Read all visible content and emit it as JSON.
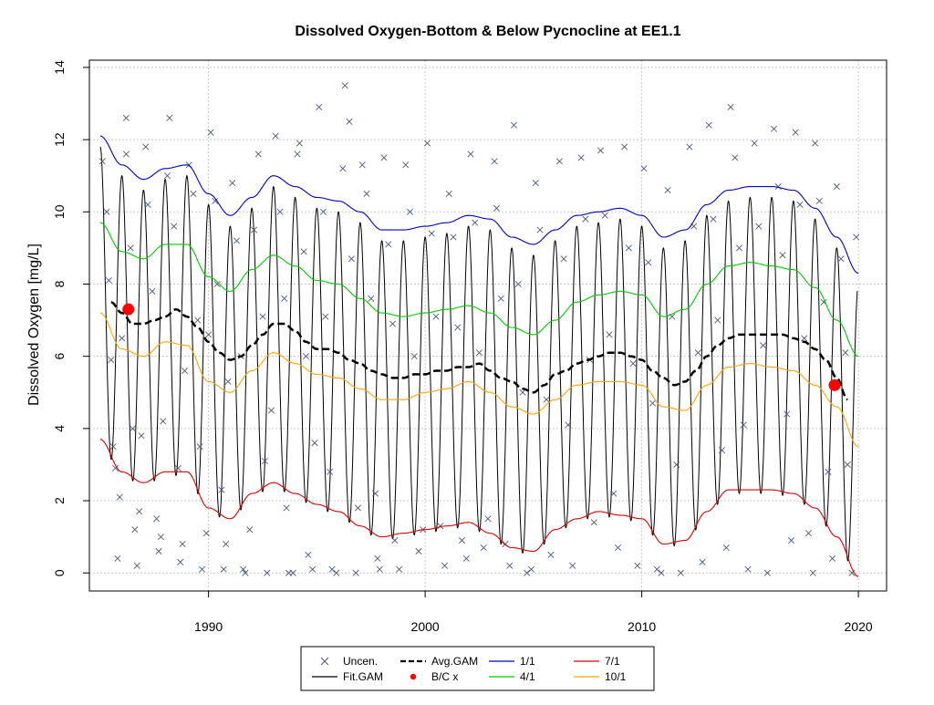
{
  "chart_data": {
    "type": "line",
    "title": "Dissolved Oxygen-Bottom & Below Pycnocline at EE1.1",
    "ylabel": "Dissolved Oxygen [mg/L]",
    "xlabel": "",
    "xlim": [
      1984.5,
      2021.3
    ],
    "ylim": [
      -0.5,
      14.2
    ],
    "x_ticks": [
      1990,
      2000,
      2010,
      2020
    ],
    "y_ticks": [
      0,
      2,
      4,
      6,
      8,
      10,
      12,
      14
    ],
    "grid": true,
    "legend": {
      "placement": "bottom-center",
      "entries": [
        {
          "label": "Uncen.",
          "symbol": "x",
          "color": "#4a5a78"
        },
        {
          "label": "Fit.GAM",
          "symbol": "line",
          "color": "#000000"
        },
        {
          "label": "Avg.GAM",
          "symbol": "dashed-line",
          "color": "#000000"
        },
        {
          "label": "B/C x",
          "symbol": "dot",
          "color": "#ff0000"
        },
        {
          "label": "1/1",
          "symbol": "line",
          "color": "#0000cc"
        },
        {
          "label": "4/1",
          "symbol": "line",
          "color": "#00cc00"
        },
        {
          "label": "7/1",
          "symbol": "line",
          "color": "#dd0000"
        },
        {
          "label": "10/1",
          "symbol": "line",
          "color": "#ffa500"
        }
      ]
    },
    "fit_gam_description": "seasonal oscillation between the 7/1 (minimum) and 1/1 (maximum) curves, one cycle per year",
    "series": [
      {
        "name": "1/1",
        "color": "#0000cc",
        "style": "solid",
        "x": [
          1985.0,
          1986.0,
          1987.0,
          1988.0,
          1989.0,
          1990.0,
          1991.0,
          1992.0,
          1993.0,
          1994.0,
          1995.0,
          1996.0,
          1997.0,
          1998.0,
          1999.0,
          2000.0,
          2001.0,
          2002.0,
          2003.0,
          2004.0,
          2005.0,
          2006.0,
          2007.0,
          2008.0,
          2009.0,
          2010.0,
          2011.0,
          2012.0,
          2013.0,
          2014.0,
          2015.0,
          2016.0,
          2017.0,
          2018.0,
          2019.0,
          2020.0
        ],
        "y": [
          12.1,
          11.3,
          10.9,
          11.2,
          11.3,
          10.5,
          9.9,
          10.4,
          11.0,
          10.7,
          10.4,
          10.3,
          10.0,
          9.5,
          9.5,
          9.6,
          9.7,
          9.9,
          9.8,
          9.3,
          9.1,
          9.5,
          9.9,
          10.0,
          10.1,
          9.9,
          9.3,
          9.5,
          10.2,
          10.6,
          10.7,
          10.7,
          10.6,
          10.1,
          9.3,
          8.3
        ]
      },
      {
        "name": "4/1",
        "color": "#00cc00",
        "style": "solid",
        "x": [
          1985.0,
          1986.0,
          1987.0,
          1988.0,
          1989.0,
          1990.0,
          1991.0,
          1992.0,
          1993.0,
          1994.0,
          1995.0,
          1996.0,
          1997.0,
          1998.0,
          1999.0,
          2000.0,
          2001.0,
          2002.0,
          2003.0,
          2004.0,
          2005.0,
          2006.0,
          2007.0,
          2008.0,
          2009.0,
          2010.0,
          2011.0,
          2012.0,
          2013.0,
          2014.0,
          2015.0,
          2016.0,
          2017.0,
          2018.0,
          2019.0,
          2020.0
        ],
        "y": [
          9.7,
          8.9,
          8.7,
          9.1,
          9.1,
          8.2,
          7.8,
          8.4,
          8.8,
          8.5,
          8.1,
          8.0,
          7.6,
          7.2,
          7.1,
          7.2,
          7.3,
          7.4,
          7.2,
          6.8,
          6.6,
          7.0,
          7.5,
          7.7,
          7.8,
          7.7,
          7.1,
          7.3,
          8.0,
          8.5,
          8.6,
          8.5,
          8.4,
          7.9,
          7.0,
          6.0
        ]
      },
      {
        "name": "10/1",
        "color": "#ffa500",
        "style": "solid",
        "x": [
          1985.0,
          1986.0,
          1987.0,
          1988.0,
          1989.0,
          1990.0,
          1991.0,
          1992.0,
          1993.0,
          1994.0,
          1995.0,
          1996.0,
          1997.0,
          1998.0,
          1999.0,
          2000.0,
          2001.0,
          2002.0,
          2003.0,
          2004.0,
          2005.0,
          2006.0,
          2007.0,
          2008.0,
          2009.0,
          2010.0,
          2011.0,
          2012.0,
          2013.0,
          2014.0,
          2015.0,
          2016.0,
          2017.0,
          2018.0,
          2019.0,
          2020.0
        ],
        "y": [
          7.2,
          6.2,
          6.0,
          6.4,
          6.3,
          5.3,
          5.0,
          5.6,
          6.1,
          5.8,
          5.5,
          5.4,
          5.1,
          4.8,
          4.8,
          5.0,
          5.1,
          5.3,
          5.0,
          4.6,
          4.4,
          4.8,
          5.2,
          5.3,
          5.3,
          5.2,
          4.6,
          4.5,
          5.2,
          5.7,
          5.8,
          5.7,
          5.6,
          5.2,
          4.6,
          3.5
        ]
      },
      {
        "name": "7/1",
        "color": "#dd0000",
        "style": "solid",
        "x": [
          1985.0,
          1986.0,
          1987.0,
          1988.0,
          1989.0,
          1990.0,
          1991.0,
          1992.0,
          1993.0,
          1994.0,
          1995.0,
          1996.0,
          1997.0,
          1998.0,
          1999.0,
          2000.0,
          2001.0,
          2002.0,
          2003.0,
          2004.0,
          2005.0,
          2006.0,
          2007.0,
          2008.0,
          2009.0,
          2010.0,
          2011.0,
          2012.0,
          2013.0,
          2014.0,
          2015.0,
          2016.0,
          2017.0,
          2018.0,
          2019.0,
          2020.0
        ],
        "y": [
          3.7,
          2.8,
          2.5,
          2.8,
          2.8,
          1.8,
          1.5,
          2.2,
          2.5,
          2.2,
          1.9,
          1.7,
          1.3,
          1.0,
          1.1,
          1.2,
          1.3,
          1.4,
          1.1,
          0.7,
          0.6,
          1.2,
          1.5,
          1.7,
          1.6,
          1.5,
          0.8,
          0.9,
          1.7,
          2.3,
          2.3,
          2.3,
          2.2,
          1.8,
          1.0,
          -0.1
        ]
      },
      {
        "name": "Avg.GAM",
        "color": "#000000",
        "style": "dashed",
        "x": [
          1985.5,
          1986.0,
          1986.5,
          1987.0,
          1987.5,
          1988.0,
          1988.5,
          1989.0,
          1989.5,
          1990.0,
          1990.5,
          1991.0,
          1991.5,
          1992.0,
          1992.5,
          1993.0,
          1993.5,
          1994.0,
          1994.5,
          1995.0,
          1995.5,
          1996.0,
          1996.5,
          1997.0,
          1997.5,
          1998.0,
          1998.5,
          1999.0,
          1999.5,
          2000.0,
          2000.5,
          2001.0,
          2001.5,
          2002.0,
          2002.5,
          2003.0,
          2003.5,
          2004.0,
          2004.5,
          2005.0,
          2005.5,
          2006.0,
          2006.5,
          2007.0,
          2007.5,
          2008.0,
          2008.5,
          2009.0,
          2009.5,
          2010.0,
          2010.5,
          2011.0,
          2011.5,
          2012.0,
          2012.5,
          2013.0,
          2013.5,
          2014.0,
          2014.5,
          2015.0,
          2015.5,
          2016.0,
          2016.5,
          2017.0,
          2017.5,
          2018.0,
          2018.5,
          2019.0,
          2019.5
        ],
        "y": [
          7.5,
          7.2,
          6.9,
          6.9,
          7.0,
          7.1,
          7.3,
          7.1,
          6.8,
          6.4,
          6.1,
          5.9,
          6.0,
          6.3,
          6.6,
          6.9,
          6.9,
          6.7,
          6.4,
          6.2,
          6.2,
          6.1,
          5.9,
          5.8,
          5.6,
          5.5,
          5.4,
          5.4,
          5.5,
          5.5,
          5.6,
          5.6,
          5.7,
          5.7,
          5.8,
          5.6,
          5.4,
          5.3,
          5.1,
          5.0,
          5.2,
          5.5,
          5.6,
          5.8,
          5.9,
          6.0,
          6.1,
          6.1,
          6.0,
          5.9,
          5.6,
          5.4,
          5.2,
          5.3,
          5.6,
          6.0,
          6.3,
          6.5,
          6.6,
          6.6,
          6.6,
          6.6,
          6.6,
          6.5,
          6.4,
          6.2,
          5.9,
          5.4,
          4.8
        ]
      }
    ],
    "bc_points": [
      {
        "x": 1986.3,
        "y": 7.3
      },
      {
        "x": 2018.9,
        "y": 5.2
      }
    ],
    "uncen_points": [
      [
        1985.1,
        11.4
      ],
      [
        1985.3,
        10.0
      ],
      [
        1985.4,
        8.1
      ],
      [
        1985.5,
        5.9
      ],
      [
        1985.6,
        3.5
      ],
      [
        1985.7,
        2.9
      ],
      [
        1985.8,
        0.4
      ],
      [
        1985.9,
        2.1
      ],
      [
        1986.0,
        6.5
      ],
      [
        1986.2,
        11.6
      ],
      [
        1986.2,
        12.6
      ],
      [
        1986.4,
        9.0
      ],
      [
        1986.5,
        4.0
      ],
      [
        1986.6,
        1.2
      ],
      [
        1986.7,
        0.2
      ],
      [
        1986.8,
        1.7
      ],
      [
        1986.9,
        3.8
      ],
      [
        1987.1,
        11.8
      ],
      [
        1987.2,
        10.2
      ],
      [
        1987.4,
        7.8
      ],
      [
        1987.6,
        1.5
      ],
      [
        1987.7,
        0.6
      ],
      [
        1987.8,
        1.0
      ],
      [
        1987.9,
        4.2
      ],
      [
        1988.1,
        11.0
      ],
      [
        1988.2,
        12.6
      ],
      [
        1988.4,
        9.6
      ],
      [
        1988.6,
        2.9
      ],
      [
        1988.7,
        0.3
      ],
      [
        1988.8,
        0.8
      ],
      [
        1988.9,
        5.6
      ],
      [
        1989.1,
        11.3
      ],
      [
        1989.3,
        10.5
      ],
      [
        1989.5,
        7.0
      ],
      [
        1989.6,
        3.5
      ],
      [
        1989.7,
        0.1
      ],
      [
        1989.9,
        1.1
      ],
      [
        1990.0,
        6.6
      ],
      [
        1990.1,
        12.2
      ],
      [
        1990.3,
        10.3
      ],
      [
        1990.4,
        8.0
      ],
      [
        1990.6,
        2.3
      ],
      [
        1990.7,
        0.1
      ],
      [
        1990.8,
        0.8
      ],
      [
        1990.9,
        5.3
      ],
      [
        1991.1,
        10.8
      ],
      [
        1991.3,
        9.2
      ],
      [
        1991.5,
        6.0
      ],
      [
        1991.6,
        0.1
      ],
      [
        1991.7,
        0.0
      ],
      [
        1991.9,
        1.2
      ],
      [
        1992.1,
        9.5
      ],
      [
        1992.3,
        11.6
      ],
      [
        1992.5,
        7.1
      ],
      [
        1992.6,
        3.1
      ],
      [
        1992.7,
        0.0
      ],
      [
        1992.9,
        4.5
      ],
      [
        1993.1,
        12.1
      ],
      [
        1993.3,
        10.0
      ],
      [
        1993.5,
        7.6
      ],
      [
        1993.6,
        1.8
      ],
      [
        1993.7,
        0.0
      ],
      [
        1993.9,
        0.0
      ],
      [
        1994.1,
        11.6
      ],
      [
        1994.2,
        11.9
      ],
      [
        1994.4,
        8.9
      ],
      [
        1994.5,
        6.0
      ],
      [
        1994.6,
        0.5
      ],
      [
        1994.8,
        0.1
      ],
      [
        1994.9,
        3.6
      ],
      [
        1995.1,
        12.9
      ],
      [
        1995.3,
        10.0
      ],
      [
        1995.4,
        7.1
      ],
      [
        1995.6,
        2.8
      ],
      [
        1995.7,
        0.1
      ],
      [
        1995.9,
        0.0
      ],
      [
        1996.2,
        11.2
      ],
      [
        1996.3,
        13.5
      ],
      [
        1996.5,
        12.5
      ],
      [
        1996.6,
        8.7
      ],
      [
        1996.8,
        0.0
      ],
      [
        1996.9,
        1.8
      ],
      [
        1997.1,
        11.3
      ],
      [
        1997.3,
        10.5
      ],
      [
        1997.5,
        7.6
      ],
      [
        1997.7,
        2.2
      ],
      [
        1997.8,
        0.4
      ],
      [
        1997.9,
        0.1
      ],
      [
        1998.1,
        11.5
      ],
      [
        1998.3,
        9.1
      ],
      [
        1998.5,
        6.9
      ],
      [
        1998.6,
        0.9
      ],
      [
        1998.8,
        0.1
      ],
      [
        1999.1,
        11.3
      ],
      [
        1999.3,
        10.0
      ],
      [
        1999.5,
        6.0
      ],
      [
        1999.7,
        0.6
      ],
      [
        1999.9,
        1.2
      ],
      [
        2000.1,
        11.9
      ],
      [
        2000.3,
        9.4
      ],
      [
        2000.5,
        7.1
      ],
      [
        2000.7,
        1.3
      ],
      [
        2000.9,
        0.2
      ],
      [
        2001.1,
        10.5
      ],
      [
        2001.3,
        9.3
      ],
      [
        2001.5,
        6.8
      ],
      [
        2001.7,
        0.9
      ],
      [
        2001.9,
        0.4
      ],
      [
        2002.1,
        11.6
      ],
      [
        2002.3,
        9.7
      ],
      [
        2002.5,
        6.1
      ],
      [
        2002.7,
        0.7
      ],
      [
        2002.9,
        1.5
      ],
      [
        2003.2,
        11.4
      ],
      [
        2003.3,
        10.1
      ],
      [
        2003.5,
        7.6
      ],
      [
        2003.7,
        0.8
      ],
      [
        2003.9,
        0.2
      ],
      [
        2004.1,
        12.4
      ],
      [
        2004.3,
        8.0
      ],
      [
        2004.5,
        5.0
      ],
      [
        2004.7,
        0.0
      ],
      [
        2004.9,
        0.1
      ],
      [
        2005.1,
        10.8
      ],
      [
        2005.3,
        9.5
      ],
      [
        2005.6,
        4.8
      ],
      [
        2005.8,
        0.5
      ],
      [
        2006.2,
        11.4
      ],
      [
        2006.4,
        8.7
      ],
      [
        2006.6,
        4.1
      ],
      [
        2006.8,
        0.2
      ],
      [
        2007.2,
        11.5
      ],
      [
        2007.4,
        9.8
      ],
      [
        2007.6,
        5.9
      ],
      [
        2007.8,
        1.4
      ],
      [
        2008.1,
        11.7
      ],
      [
        2008.3,
        9.9
      ],
      [
        2008.5,
        6.6
      ],
      [
        2008.7,
        2.2
      ],
      [
        2008.9,
        0.7
      ],
      [
        2009.2,
        11.8
      ],
      [
        2009.4,
        9.0
      ],
      [
        2009.6,
        5.8
      ],
      [
        2009.8,
        0.2
      ],
      [
        2010.1,
        11.2
      ],
      [
        2010.3,
        8.6
      ],
      [
        2010.5,
        4.7
      ],
      [
        2010.7,
        0.1
      ],
      [
        2010.9,
        0.0
      ],
      [
        2011.2,
        10.6
      ],
      [
        2011.4,
        7.1
      ],
      [
        2011.6,
        3.0
      ],
      [
        2011.8,
        0.0
      ],
      [
        2012.2,
        11.8
      ],
      [
        2012.4,
        9.6
      ],
      [
        2012.6,
        6.1
      ],
      [
        2012.8,
        0.3
      ],
      [
        2013.1,
        12.4
      ],
      [
        2013.3,
        9.8
      ],
      [
        2013.5,
        7.0
      ],
      [
        2013.7,
        3.4
      ],
      [
        2013.9,
        0.7
      ],
      [
        2014.1,
        12.9
      ],
      [
        2014.3,
        11.5
      ],
      [
        2014.5,
        9.0
      ],
      [
        2014.7,
        4.1
      ],
      [
        2014.9,
        0.1
      ],
      [
        2015.2,
        11.9
      ],
      [
        2015.4,
        9.6
      ],
      [
        2015.6,
        6.3
      ],
      [
        2015.8,
        0.0
      ],
      [
        2016.1,
        12.3
      ],
      [
        2016.3,
        10.7
      ],
      [
        2016.5,
        8.8
      ],
      [
        2016.7,
        4.4
      ],
      [
        2016.9,
        0.9
      ],
      [
        2017.1,
        12.2
      ],
      [
        2017.3,
        10.2
      ],
      [
        2017.5,
        6.5
      ],
      [
        2017.7,
        1.1
      ],
      [
        2017.9,
        0.0
      ],
      [
        2018.0,
        11.9
      ],
      [
        2018.2,
        10.3
      ],
      [
        2018.4,
        7.5
      ],
      [
        2018.6,
        2.8
      ],
      [
        2018.8,
        0.4
      ],
      [
        2019.0,
        10.7
      ],
      [
        2019.2,
        8.7
      ],
      [
        2019.4,
        6.1
      ],
      [
        2019.5,
        3.0
      ],
      [
        2019.7,
        0.0
      ],
      [
        2019.9,
        9.3
      ]
    ]
  }
}
